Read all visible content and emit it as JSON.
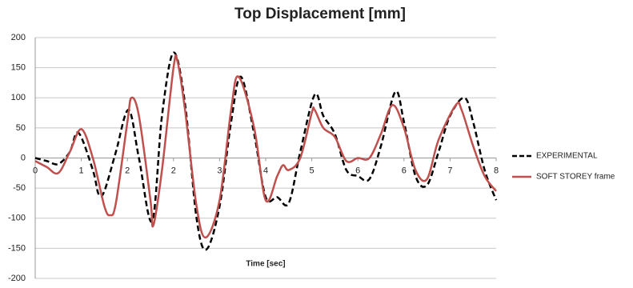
{
  "chart_data": {
    "type": "line",
    "title": "Top Displacement [mm]",
    "xlabel": "Time [sec]",
    "xlim": [
      0,
      8
    ],
    "ylim": [
      -200,
      200
    ],
    "yticks": [
      -200,
      -150,
      -100,
      -50,
      0,
      50,
      100,
      150,
      200
    ],
    "xticks": [
      0,
      {
        "value": 0.8,
        "label": "1"
      },
      {
        "value": 1.6,
        "label": "2"
      },
      {
        "value": 2.4,
        "label": "2"
      },
      {
        "value": 3.2,
        "label": "3"
      },
      4,
      {
        "value": 4.8,
        "label": "5"
      },
      {
        "value": 5.6,
        "label": "6"
      },
      {
        "value": 6.4,
        "label": "6"
      },
      {
        "value": 7.2,
        "label": "7"
      },
      8
    ],
    "grid": true,
    "legend": "right",
    "series": [
      {
        "name": "EXPERIMENTAL",
        "color": "#000000",
        "dash": true,
        "x": [
          0,
          0.2,
          0.4,
          0.6,
          0.75,
          1.0,
          1.1,
          1.2,
          1.4,
          1.62,
          1.8,
          2.03,
          2.2,
          2.4,
          2.6,
          2.8,
          2.97,
          3.2,
          3.4,
          3.57,
          3.8,
          4.0,
          4.2,
          4.4,
          4.6,
          4.85,
          5.0,
          5.2,
          5.4,
          5.6,
          5.8,
          6.0,
          6.25,
          6.4,
          6.6,
          6.8,
          7.0,
          7.2,
          7.45,
          7.6,
          7.8,
          8.0
        ],
        "values": [
          0,
          -5,
          -10,
          10,
          42,
          -20,
          -60,
          -55,
          10,
          80,
          0,
          -105,
          70,
          175,
          90,
          -100,
          -152,
          -80,
          60,
          135,
          40,
          -65,
          -65,
          -75,
          10,
          105,
          70,
          40,
          -20,
          -30,
          -35,
          20,
          110,
          60,
          -30,
          -45,
          10,
          70,
          100,
          60,
          -20,
          -70
        ]
      },
      {
        "name": "SOFT STOREY frame",
        "color": "#c0504d",
        "dash": false,
        "x": [
          0,
          0.2,
          0.4,
          0.6,
          0.8,
          1.0,
          1.2,
          1.3,
          1.4,
          1.6,
          1.67,
          1.8,
          2.0,
          2.05,
          2.2,
          2.4,
          2.47,
          2.6,
          2.8,
          2.96,
          3.2,
          3.4,
          3.53,
          3.8,
          4.0,
          4.2,
          4.3,
          4.4,
          4.6,
          4.8,
          4.85,
          5.0,
          5.2,
          5.4,
          5.6,
          5.8,
          6.0,
          6.2,
          6.4,
          6.6,
          6.8,
          7.0,
          7.3,
          7.4,
          7.6,
          7.8,
          8.0
        ],
        "values": [
          -5,
          -15,
          -25,
          10,
          48,
          0,
          -80,
          -95,
          -75,
          60,
          100,
          70,
          -70,
          -112,
          -20,
          150,
          160,
          80,
          -80,
          -132,
          -70,
          80,
          135,
          50,
          -70,
          -30,
          -12,
          -20,
          0,
          75,
          80,
          50,
          35,
          -5,
          0,
          0,
          40,
          88,
          50,
          -20,
          -35,
          30,
          88,
          80,
          20,
          -30,
          -55
        ]
      }
    ]
  }
}
